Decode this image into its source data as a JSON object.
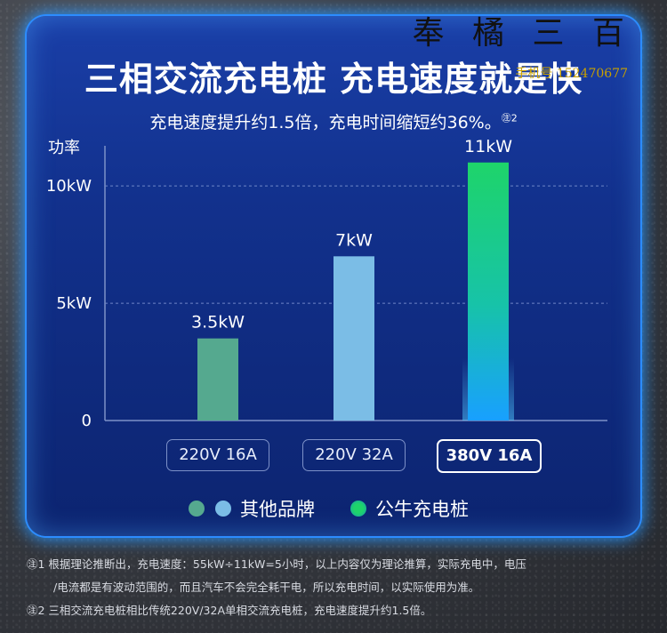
{
  "header": {
    "title": "三相交流充电桩 充电速度就是快",
    "subtitle": "充电速度提升约1.5倍，充电时间缩短约36%。",
    "subtitle_note_mark": "㊟2",
    "watermark": "奉 橘 三 百",
    "watermark_phone": "手机号 152470677"
  },
  "chart_data": {
    "type": "bar",
    "ylabel": "功率",
    "yticks": [
      "0",
      "5kW",
      "10kW"
    ],
    "ylim": [
      0,
      13
    ],
    "grid": "dashed at 5kW and 10kW",
    "categories": [
      "220V 16A",
      "220V 32A",
      "380V 16A"
    ],
    "values": [
      3.5,
      7,
      11
    ],
    "data_labels": [
      "3.5kW",
      "7kW",
      "11kW"
    ],
    "highlight_category": "380V 16A",
    "bar_colors": [
      "#55a98f",
      "#7bbde6",
      "gradient:#1ed46a-#18a0ff"
    ]
  },
  "legend": {
    "items": [
      {
        "label": "其他品牌",
        "colors": [
          "#55a98f",
          "#7bbde6"
        ]
      },
      {
        "label": "公牛充电桩",
        "colors": [
          "#1ed46a"
        ]
      }
    ]
  },
  "footnotes": [
    "㊟1 根据理论推断出，充电速度：55kW÷11kW=5小时，以上内容仅为理论推算，实际充电中，电压",
    "/电流都是有波动范围的，而且汽车不会完全耗干电，所以充电时间，以实际使用为准。",
    "㊟2 三相交流充电桩相比传统220V/32A单相交流充电桩，充电速度提升约1.5倍。"
  ]
}
